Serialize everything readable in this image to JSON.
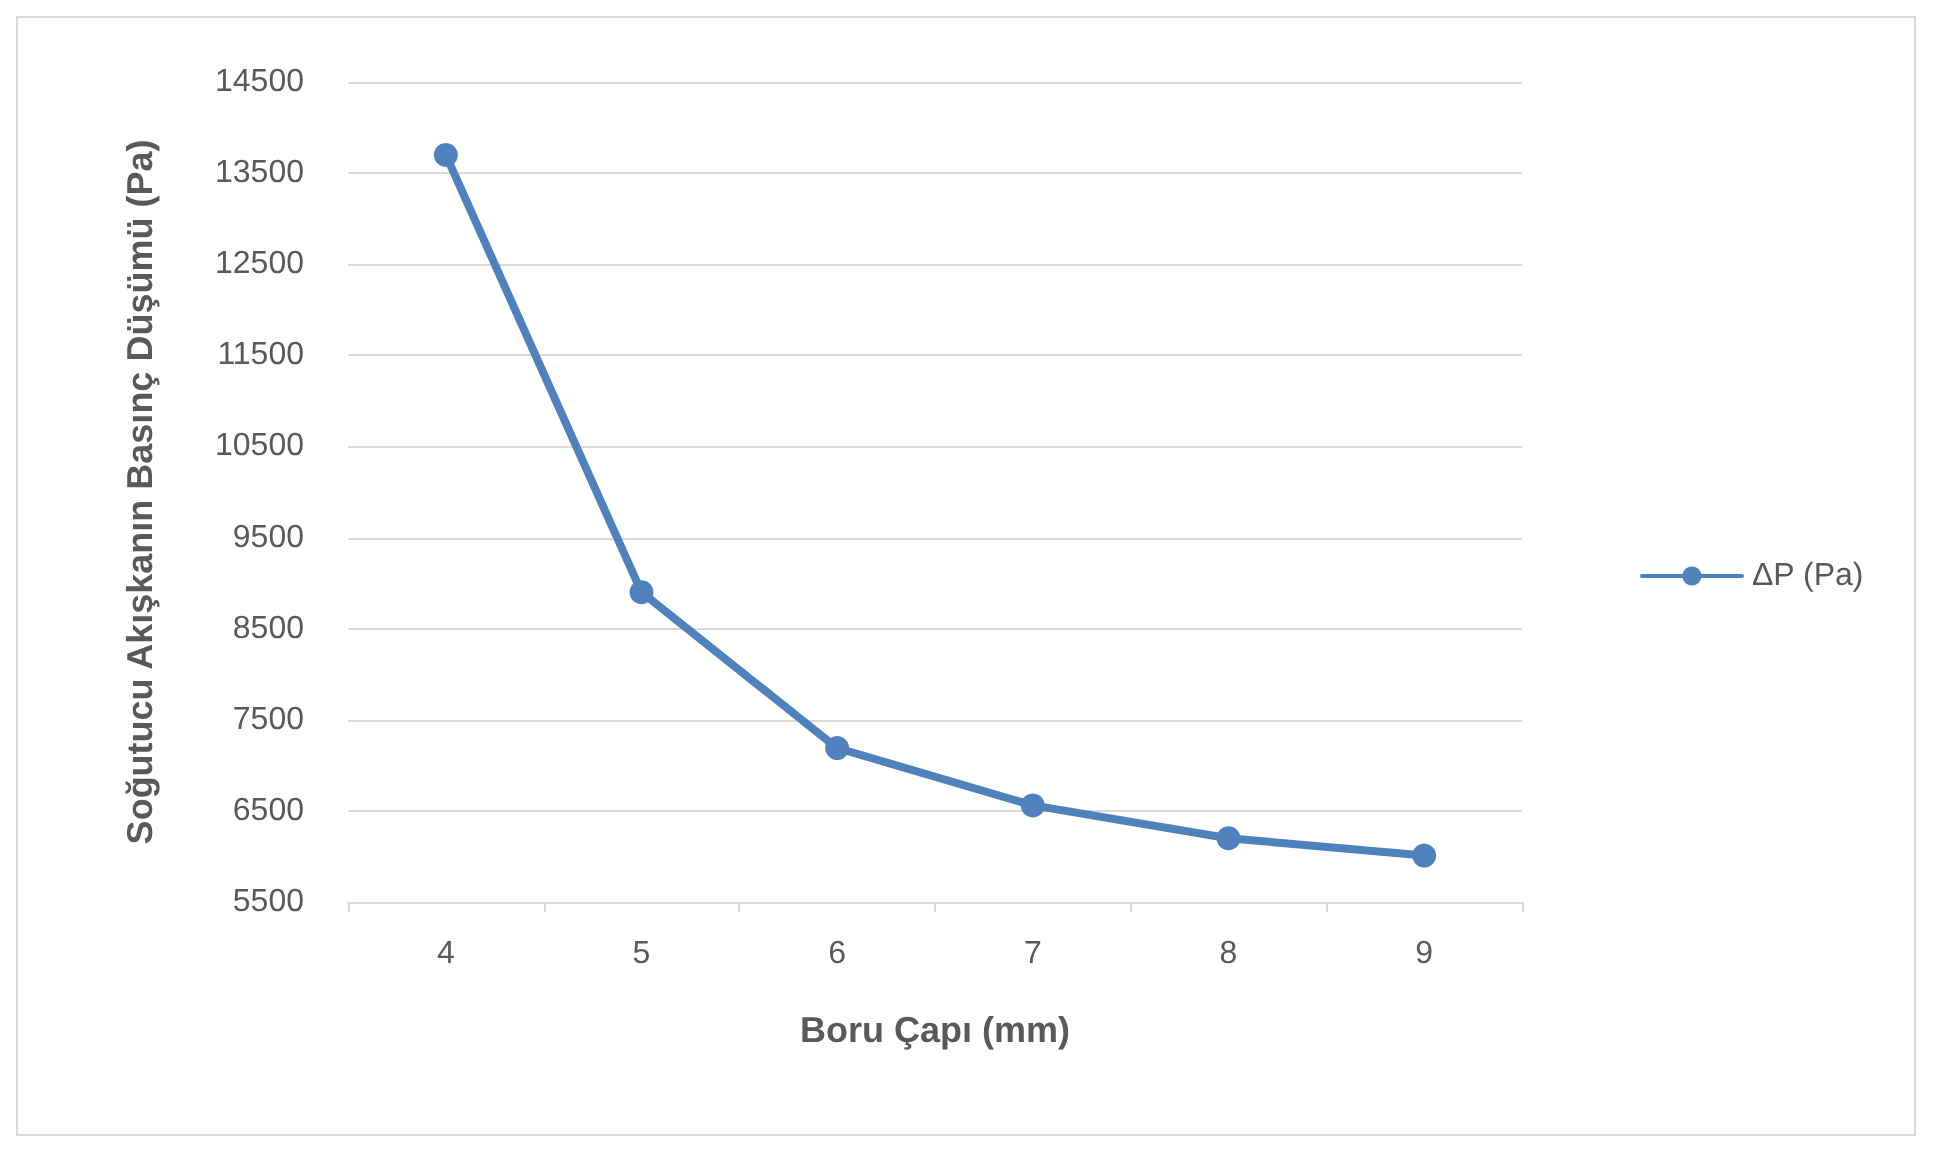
{
  "chart_data": {
    "type": "line",
    "xlabel": "Boru Çapı (mm)",
    "ylabel": "Soğutucu Akışkanın Basınç Düşümü (Pa)",
    "categories": [
      "4",
      "5",
      "6",
      "7",
      "8",
      "9"
    ],
    "series": [
      {
        "name": "ΔP (Pa)",
        "color": "#4f81bd",
        "values": [
          13700,
          8900,
          7190,
          6560,
          6200,
          6010
        ]
      }
    ],
    "ylim": [
      5500,
      14500
    ],
    "yticks": [
      5500,
      6500,
      7500,
      8500,
      9500,
      10500,
      11500,
      12500,
      13500,
      14500
    ],
    "grid": "y",
    "legend": "right",
    "marker": "circle"
  }
}
